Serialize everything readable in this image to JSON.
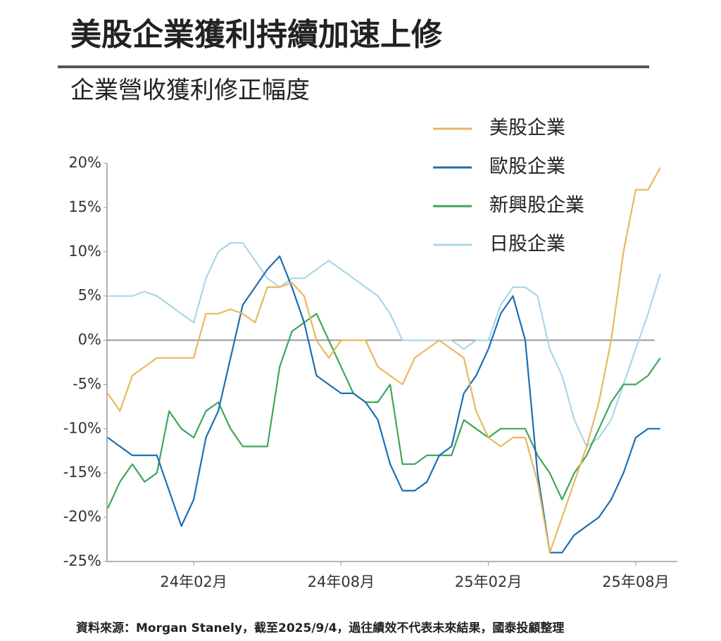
{
  "chart_data": {
    "type": "line",
    "title": "美股企業獲利持續加速上修",
    "subtitle": "企業營收獲利修正幅度",
    "source": "資料來源：Morgan Stanely，截至2025/9/4，過往績效不代表未來結果，國泰投顧整理",
    "categories": [
      null,
      null,
      null,
      null,
      null,
      null,
      null,
      "24年02月",
      null,
      null,
      null,
      null,
      null,
      null,
      null,
      null,
      null,
      null,
      null,
      "24年08月",
      null,
      null,
      null,
      null,
      null,
      null,
      null,
      null,
      null,
      null,
      null,
      "25年02月",
      null,
      null,
      null,
      null,
      null,
      null,
      null,
      null,
      null,
      null,
      null,
      "25年08月",
      null,
      null
    ],
    "ylim": [
      -25,
      20
    ],
    "yticks": [
      {
        "value": 20,
        "label": "20%"
      },
      {
        "value": 15,
        "label": "15%"
      },
      {
        "value": 10,
        "label": "10%"
      },
      {
        "value": 5,
        "label": "5%"
      },
      {
        "value": 0,
        "label": "0%"
      },
      {
        "value": -5,
        "label": "-5%"
      },
      {
        "value": -10,
        "label": "-10%"
      },
      {
        "value": -15,
        "label": "-15%"
      },
      {
        "value": -20,
        "label": "-20%"
      },
      {
        "value": -25,
        "label": "-25%"
      }
    ],
    "zero_line": true,
    "series": [
      {
        "name": "美股企業",
        "color": "#e8b85c",
        "values": [
          -6,
          -8,
          -4,
          -3,
          -2,
          -2,
          -2,
          -2,
          3,
          3,
          3.5,
          3,
          2,
          6,
          6,
          6.5,
          5,
          0,
          -2,
          0,
          0,
          0,
          -3,
          -4,
          -5,
          -2,
          -1,
          0,
          -1,
          -2,
          -8,
          -11,
          -12,
          -11,
          -11,
          -16,
          -24,
          -20,
          -16,
          -12,
          -7,
          0,
          10,
          17,
          17,
          19.5
        ]
      },
      {
        "name": "歐股企業",
        "color": "#1b6fb3",
        "values": [
          -11,
          -12,
          -13,
          -13,
          -13,
          -17,
          -21,
          -18,
          -11,
          -8,
          -2,
          4,
          6,
          8,
          9.5,
          6,
          2,
          -4,
          -5,
          -6,
          -6,
          -7,
          -9,
          -14,
          -17,
          -17,
          -16,
          -13,
          -12,
          -6,
          -4,
          -1,
          3,
          5,
          0,
          -15,
          -24,
          -24,
          -22,
          -21,
          -20,
          -18,
          -15,
          -11,
          -10,
          -10
        ]
      },
      {
        "name": "新興股企業",
        "color": "#3ea65b",
        "values": [
          -19,
          -16,
          -14,
          -16,
          -15,
          -8,
          -10,
          -11,
          -8,
          -7,
          -10,
          -12,
          -12,
          -12,
          -3,
          1,
          2,
          3,
          0,
          -3,
          -6,
          -7,
          -7,
          -5,
          -14,
          -14,
          -13,
          -13,
          -13,
          -9,
          -10,
          -11,
          -10,
          -10,
          -10,
          -13,
          -15,
          -18,
          -15,
          -13,
          -10,
          -7,
          -5,
          -5,
          -4,
          -2
        ]
      },
      {
        "name": "日股企業",
        "color": "#acd7e6",
        "values": [
          5,
          5,
          5,
          5.5,
          5,
          4,
          3,
          2,
          7,
          10,
          11,
          11,
          9,
          7,
          6,
          7,
          7,
          8,
          9,
          8,
          7,
          6,
          5,
          3,
          0,
          0,
          0,
          0,
          0,
          -1,
          0,
          0,
          4,
          6,
          6,
          5,
          -1,
          -4,
          -9,
          -12,
          -11,
          -9,
          -5,
          -1,
          3,
          7.5
        ]
      }
    ]
  }
}
